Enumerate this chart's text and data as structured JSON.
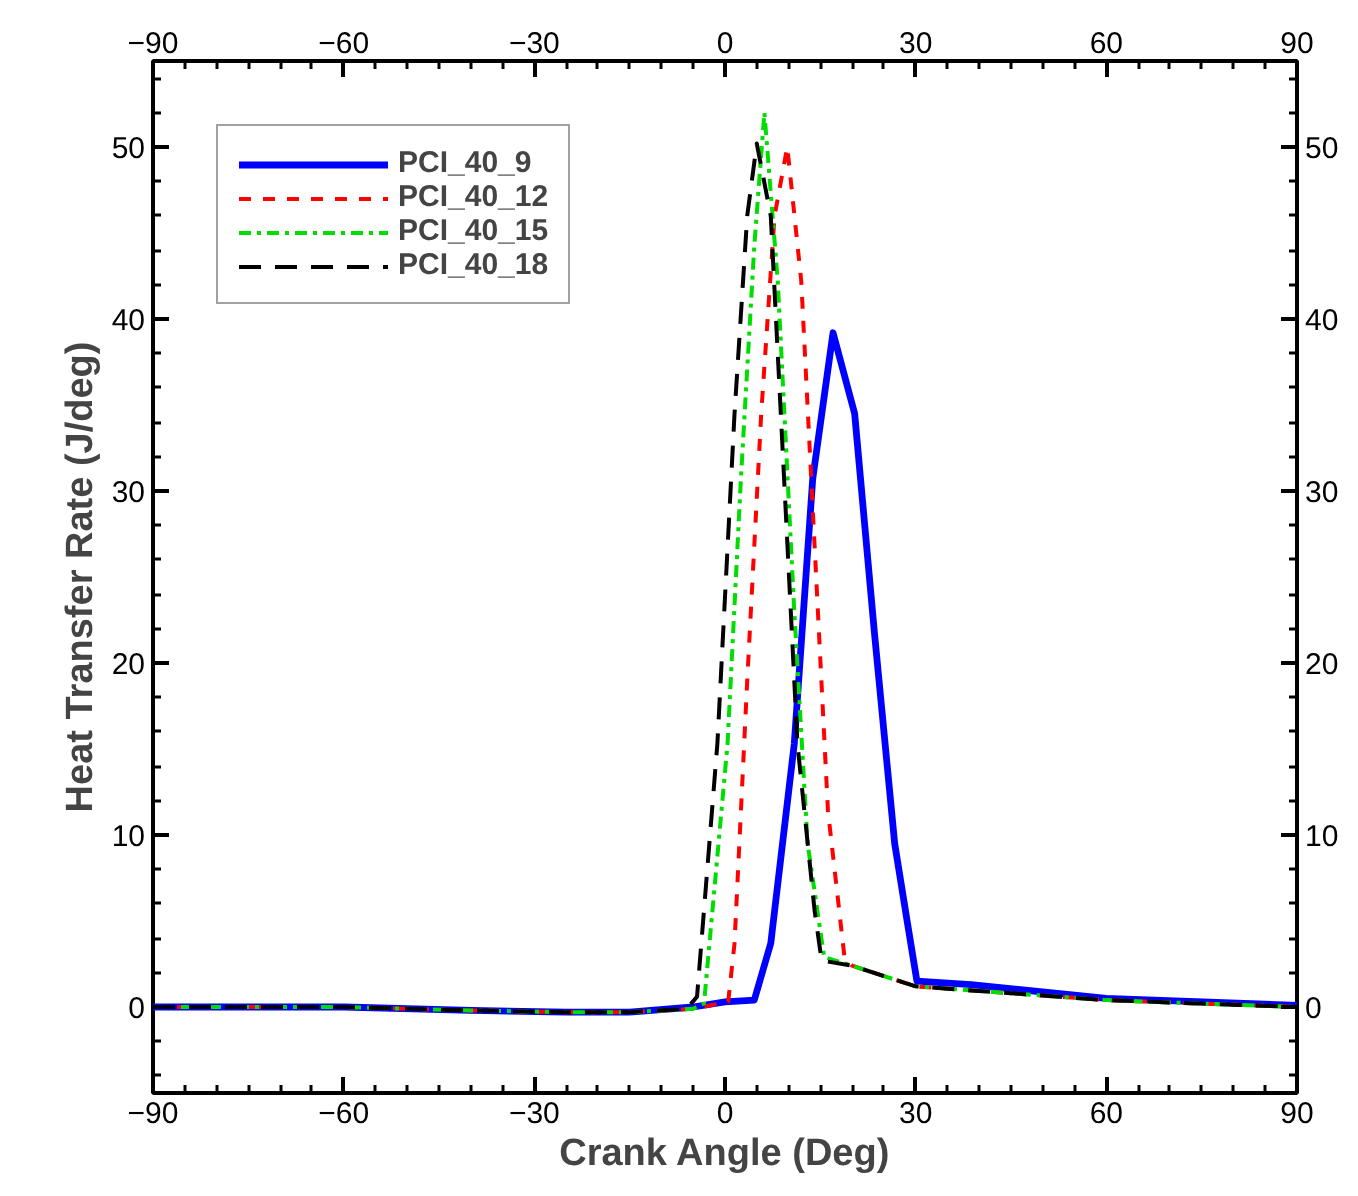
{
  "chart_data": {
    "type": "line",
    "xlabel": "Crank Angle (Deg)",
    "ylabel": "Heat Transfer Rate (J/deg)",
    "xlim": [
      -90,
      90
    ],
    "xticks": [
      -90,
      -60,
      -30,
      0,
      30,
      60,
      90
    ],
    "x2lim": [
      -90,
      90
    ],
    "x2ticks": [
      -90,
      -60,
      -30,
      0,
      30,
      60,
      90
    ],
    "ylim": [
      -5,
      55
    ],
    "yticks": [
      0,
      10,
      20,
      30,
      40,
      50
    ],
    "y2lim": [
      -5,
      55
    ],
    "y2ticks": [
      0,
      10,
      20,
      30,
      40,
      50
    ],
    "grid": false,
    "legend": "top left",
    "marker": "none",
    "series": [
      {
        "name": "PCI_40_9",
        "color": "#0000ff",
        "line_style": "solid",
        "x": [
          -90,
          -60,
          -40,
          -25,
          -15,
          -5,
          0,
          4.6,
          7.2,
          10.9,
          13.8,
          17.0,
          20.4,
          23.5,
          26.7,
          28.7,
          30.2,
          38.7,
          60,
          90
        ],
        "values": [
          0,
          0,
          -0.2,
          -0.3,
          -0.3,
          0,
          0.3,
          0.4,
          3.7,
          15.3,
          30.7,
          39.2,
          34.5,
          21.8,
          9.5,
          4.9,
          1.5,
          1.3,
          0.5,
          0.1
        ]
      },
      {
        "name": "PCI_40_12",
        "color": "#ff0000",
        "line_style": "dashed",
        "x": [
          -90,
          -60,
          -40,
          -25,
          -15,
          -5,
          0.5,
          1.5,
          3.5,
          5.7,
          7.8,
          9.8,
          12.0,
          14.1,
          16.2,
          18.8,
          20,
          30,
          45,
          60,
          90
        ],
        "values": [
          0,
          0,
          -0.2,
          -0.3,
          -0.3,
          -0.1,
          0.3,
          3.7,
          19.0,
          34.5,
          46.0,
          50.0,
          42.2,
          26.8,
          11.4,
          2.9,
          2.4,
          1.2,
          0.8,
          0.4,
          0
        ]
      },
      {
        "name": "PCI_40_15",
        "color": "#00dd00",
        "line_style": "dashdot",
        "x": [
          -90,
          -60,
          -40,
          -25,
          -15,
          -5,
          -3.3,
          0.4,
          2.5,
          4.6,
          6.2,
          8.3,
          10.9,
          13.0,
          15.6,
          20,
          30,
          45,
          60,
          90
        ],
        "values": [
          0,
          0,
          -0.2,
          -0.3,
          -0.3,
          -0.1,
          0.2,
          15.3,
          30.7,
          44.2,
          52.0,
          42.2,
          23.0,
          9.5,
          2.9,
          2.4,
          1.2,
          0.8,
          0.4,
          0
        ]
      },
      {
        "name": "PCI_40_18",
        "color": "#000000",
        "line_style": "longdash",
        "x": [
          -90,
          -60,
          -40,
          -25,
          -15,
          -6,
          -4.4,
          -1.2,
          1.5,
          3.5,
          5.0,
          7.2,
          9.3,
          11.4,
          14.1,
          15.2,
          20,
          30,
          45,
          60,
          90
        ],
        "values": [
          0,
          0,
          -0.2,
          -0.3,
          -0.3,
          -0.1,
          0.6,
          15.3,
          34.5,
          46.0,
          50.2,
          46.0,
          30.7,
          15.3,
          5.6,
          2.7,
          2.4,
          1.2,
          0.8,
          0.4,
          0
        ]
      }
    ]
  }
}
